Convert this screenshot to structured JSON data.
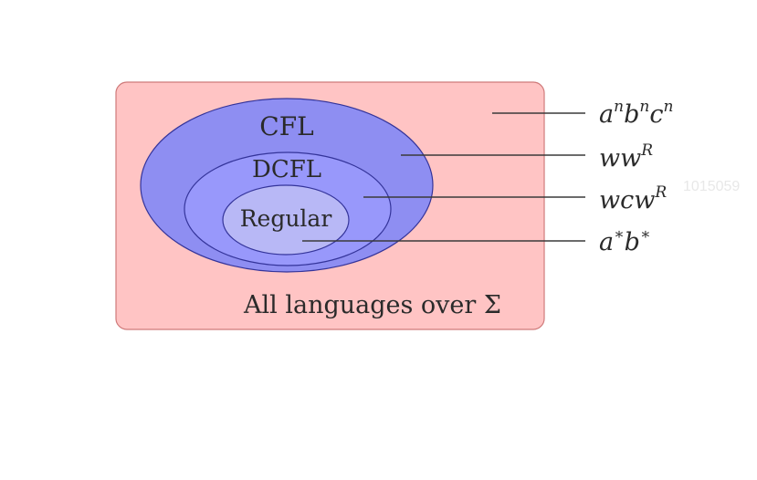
{
  "diagram": {
    "outer_label": "All languages over Σ",
    "regions": [
      {
        "id": "cfl",
        "label": "CFL"
      },
      {
        "id": "dcfl",
        "label": "DCFL"
      },
      {
        "id": "regular",
        "label": "Regular"
      }
    ],
    "examples": [
      {
        "base": "aⁿbⁿcⁿ",
        "parts": [
          [
            "a",
            "n"
          ],
          [
            "b",
            "n"
          ],
          [
            "c",
            "n"
          ]
        ]
      },
      {
        "base": "ww^R",
        "parts": [
          [
            "w",
            ""
          ],
          [
            "w",
            "R"
          ]
        ]
      },
      {
        "base": "wcw^R",
        "parts": [
          [
            "w",
            ""
          ],
          [
            "c",
            ""
          ],
          [
            "w",
            "R"
          ]
        ]
      },
      {
        "base": "a*b*",
        "parts": [
          [
            "a",
            "*"
          ],
          [
            "b",
            "*"
          ]
        ]
      }
    ],
    "watermark": "1015059",
    "colors": {
      "outer_fill": "#ffc4c4",
      "outer_stroke": "#cf7a7a",
      "cfl_fill": "#8e8ef2",
      "dcfl_fill": "#9898fb",
      "regular_fill": "#b8b8f6",
      "ellipse_stroke": "#34349a",
      "leader": "#3a3a3a"
    }
  }
}
